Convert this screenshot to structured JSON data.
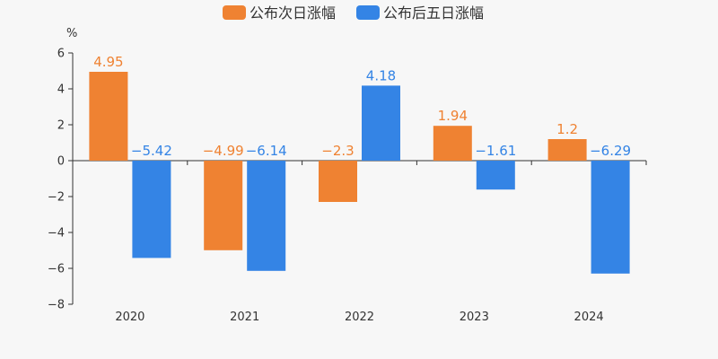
{
  "chart_data": {
    "type": "bar",
    "unit_label": "%",
    "categories": [
      "2020",
      "2021",
      "2022",
      "2023",
      "2024"
    ],
    "series": [
      {
        "name": "公布次日涨幅",
        "color": "#ef8232",
        "values": [
          4.95,
          -4.99,
          -2.3,
          1.94,
          1.2
        ],
        "labels": [
          "4.95",
          "−4.99",
          "−2.3",
          "1.94",
          "1.2"
        ]
      },
      {
        "name": "公布后五日涨幅",
        "color": "#3484e5",
        "values": [
          -5.42,
          -6.14,
          4.18,
          -1.61,
          -6.29
        ],
        "labels": [
          "−5.42",
          "−6.14",
          "4.18",
          "−1.61",
          "−6.29"
        ]
      }
    ],
    "ylim": [
      -8,
      6
    ],
    "yticks": [
      6,
      4,
      2,
      0,
      -2,
      -4,
      -6,
      -8
    ],
    "ytick_labels": [
      "6",
      "4",
      "2",
      "0",
      "−2",
      "−4",
      "−6",
      "−8"
    ],
    "legend_position": "top-center",
    "grid": false
  }
}
